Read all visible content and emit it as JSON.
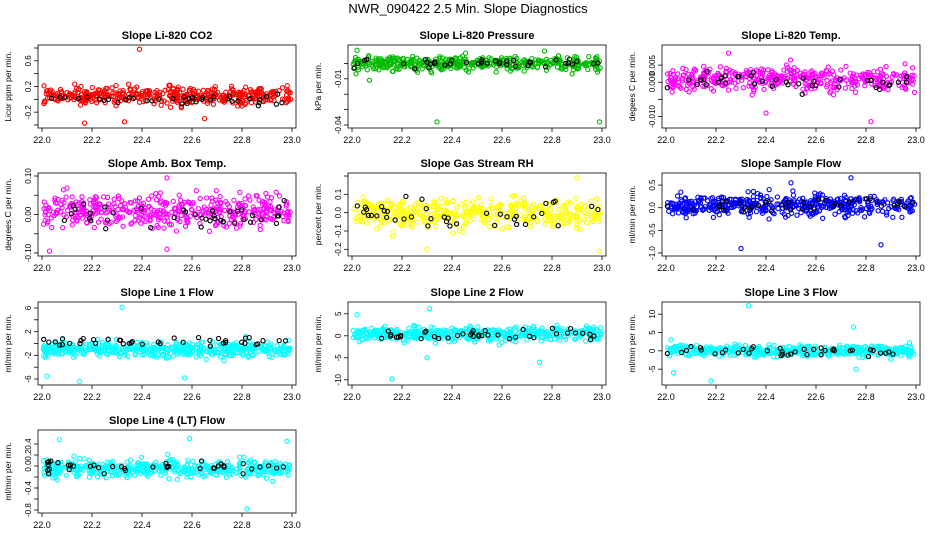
{
  "page": {
    "title": "NWR_090422  2.5 Min. Slope Diagnostics"
  },
  "chart_data": [
    {
      "type": "scatter",
      "title": "Slope Li-820 CO2",
      "xlabel": "",
      "ylabel": "Licor ppm per min.",
      "xlim": [
        22.0,
        23.0
      ],
      "ylim": [
        -0.4,
        0.8
      ],
      "xticks": [
        "22.0",
        "22.2",
        "22.4",
        "22.6",
        "22.8",
        "23.0"
      ],
      "yticks": [
        -0.4,
        -0.2,
        0.0,
        0.2,
        0.4,
        0.6,
        0.8
      ],
      "ytick_labels": [
        "",
        "-0.2",
        "",
        "0.2",
        "",
        "0.6",
        ""
      ],
      "series": [
        {
          "color": "#ff0000",
          "center": 0.06,
          "spread": 0.11,
          "n": 420
        },
        {
          "color": "#000000",
          "center": 0.0,
          "spread": 0.08,
          "n": 40
        }
      ],
      "outliers": [
        [
          22.39,
          0.78
        ],
        [
          22.17,
          -0.37
        ],
        [
          22.33,
          -0.35
        ],
        [
          22.65,
          -0.3
        ]
      ]
    },
    {
      "type": "scatter",
      "title": "Slope Li-820 Pressure",
      "xlabel": "",
      "ylabel": "kPa per min.",
      "xlim": [
        22.0,
        23.0
      ],
      "ylim": [
        -0.04,
        0.01
      ],
      "xticks": [
        "22.0",
        "22.2",
        "22.4",
        "22.6",
        "22.8",
        "23.0"
      ],
      "yticks": [
        -0.04,
        -0.03,
        -0.02,
        -0.01,
        0.0
      ],
      "ytick_labels": [
        "-0.04",
        "",
        "",
        "-0.01",
        ""
      ],
      "series": [
        {
          "color": "#00bb00",
          "center": 0.0,
          "spread": 0.004,
          "n": 420
        },
        {
          "color": "#000000",
          "center": 0.0,
          "spread": 0.0025,
          "n": 40
        }
      ],
      "outliers": [
        [
          22.34,
          -0.038
        ],
        [
          22.99,
          -0.038
        ],
        [
          22.02,
          0.0085
        ],
        [
          22.77,
          0.008
        ],
        [
          22.07,
          -0.011
        ]
      ]
    },
    {
      "type": "scatter",
      "title": "Slope Li-820 Temp.",
      "xlabel": "",
      "ylabel": "degees C per min.",
      "xlim": [
        22.0,
        23.0
      ],
      "ylim": [
        -0.0125,
        0.01
      ],
      "xticks": [
        "22.0",
        "22.2",
        "22.4",
        "22.6",
        "22.8",
        "23.0"
      ],
      "yticks": [
        -0.01,
        -0.005,
        0.0,
        0.005
      ],
      "ytick_labels": [
        "-0.010",
        "",
        "0.000",
        "0.005"
      ],
      "series": [
        {
          "color": "#ff00ff",
          "center": 0.001,
          "spread": 0.003,
          "n": 420
        },
        {
          "color": "#000000",
          "center": 0.0,
          "spread": 0.0025,
          "n": 40
        }
      ],
      "outliers": [
        [
          22.25,
          0.0085
        ],
        [
          22.82,
          -0.0115
        ],
        [
          22.4,
          -0.009
        ]
      ]
    },
    {
      "type": "scatter",
      "title": "Slope Amb. Box Temp.",
      "xlabel": "",
      "ylabel": "degrees C per min.",
      "xlim": [
        22.0,
        23.0
      ],
      "ylim": [
        -0.1,
        0.1
      ],
      "xticks": [
        "22.0",
        "22.2",
        "22.4",
        "22.6",
        "22.8",
        "23.0"
      ],
      "yticks": [
        -0.1,
        -0.05,
        0.0,
        0.05,
        0.1
      ],
      "ytick_labels": [
        "-0.10",
        "",
        "0.00",
        "",
        "0.10"
      ],
      "series": [
        {
          "color": "#ff00ff",
          "center": 0.01,
          "spread": 0.035,
          "n": 420
        },
        {
          "color": "#000000",
          "center": 0.0,
          "spread": 0.03,
          "n": 40
        }
      ],
      "outliers": [
        [
          22.5,
          0.095
        ],
        [
          22.03,
          -0.095
        ],
        [
          22.5,
          -0.09
        ]
      ]
    },
    {
      "type": "scatter",
      "title": "Slope Gas Stream RH",
      "xlabel": "",
      "ylabel": "percent per min.",
      "xlim": [
        22.0,
        23.0
      ],
      "ylim": [
        -0.22,
        0.2
      ],
      "xticks": [
        "22.0",
        "22.2",
        "22.4",
        "22.6",
        "22.8",
        "23.0"
      ],
      "yticks": [
        -0.2,
        -0.1,
        0.0,
        0.1,
        0.2
      ],
      "ytick_labels": [
        "-0.2",
        "-0.1",
        "0.0",
        "0.1",
        ""
      ],
      "series": [
        {
          "color": "#ffff00",
          "center": 0.0,
          "spread": 0.07,
          "n": 420
        },
        {
          "color": "#000000",
          "center": 0.0,
          "spread": 0.07,
          "n": 40
        }
      ],
      "outliers": [
        [
          22.3,
          -0.2
        ],
        [
          22.99,
          -0.21
        ],
        [
          22.9,
          0.19
        ]
      ]
    },
    {
      "type": "scatter",
      "title": "Slope Sample Flow",
      "xlabel": "",
      "ylabel": "ml/min per min.",
      "xlim": [
        22.0,
        23.0
      ],
      "ylim": [
        -1.0,
        0.7
      ],
      "xticks": [
        "22.0",
        "22.2",
        "22.4",
        "22.6",
        "22.8",
        "23.0"
      ],
      "yticks": [
        -1.0,
        -0.5,
        0.0,
        0.5
      ],
      "ytick_labels": [
        "-1.0",
        "-0.5",
        "0.0",
        "0.5"
      ],
      "series": [
        {
          "color": "#0000ff",
          "center": 0.05,
          "spread": 0.2,
          "n": 460
        },
        {
          "color": "#000000",
          "center": 0.05,
          "spread": 0.15,
          "n": 40
        }
      ],
      "outliers": [
        [
          22.74,
          0.66
        ],
        [
          22.3,
          -0.9
        ],
        [
          22.86,
          -0.82
        ],
        [
          22.5,
          0.55
        ]
      ]
    },
    {
      "type": "scatter",
      "title": "Slope Line 1 Flow",
      "xlabel": "",
      "ylabel": "ml/min per min.",
      "xlim": [
        22.0,
        23.0
      ],
      "ylim": [
        -6.5,
        6.5
      ],
      "xticks": [
        "22.0",
        "22.2",
        "22.4",
        "22.6",
        "22.8",
        "23.0"
      ],
      "yticks": [
        -6,
        -4,
        -2,
        0,
        2,
        4,
        6
      ],
      "ytick_labels": [
        "-6",
        "",
        "-2",
        "",
        "2",
        "",
        "6"
      ],
      "series": [
        {
          "color": "#00ffff",
          "center": -1.0,
          "spread": 1.1,
          "n": 460
        },
        {
          "color": "#000000",
          "center": 0.3,
          "spread": 0.5,
          "n": 40
        }
      ],
      "outliers": [
        [
          22.32,
          6.1
        ],
        [
          22.15,
          -6.4
        ],
        [
          22.02,
          -5.5
        ],
        [
          22.57,
          -5.8
        ]
      ]
    },
    {
      "type": "scatter",
      "title": "Slope Line 2 Flow",
      "xlabel": "",
      "ylabel": "ml/min per min.",
      "xlim": [
        22.0,
        23.0
      ],
      "ylim": [
        -10.5,
        7.0
      ],
      "xticks": [
        "22.0",
        "22.2",
        "22.4",
        "22.6",
        "22.8",
        "23.0"
      ],
      "yticks": [
        -10,
        -5,
        0,
        5
      ],
      "ytick_labels": [
        "-10",
        "-5",
        "0",
        "5"
      ],
      "series": [
        {
          "color": "#00ffff",
          "center": 0.5,
          "spread": 1.4,
          "n": 440
        },
        {
          "color": "#000000",
          "center": 0.5,
          "spread": 1.2,
          "n": 40
        }
      ],
      "outliers": [
        [
          22.16,
          -9.8
        ],
        [
          22.31,
          6.2
        ],
        [
          22.02,
          4.8
        ],
        [
          22.75,
          -6.0
        ],
        [
          22.3,
          -5.0
        ]
      ]
    },
    {
      "type": "scatter",
      "title": "Slope Line 3 Flow",
      "xlabel": "",
      "ylabel": "ml/min per min.",
      "xlim": [
        22.0,
        23.0
      ],
      "ylim": [
        -8.5,
        12.5
      ],
      "xticks": [
        "22.0",
        "22.2",
        "22.4",
        "22.6",
        "22.8",
        "23.0"
      ],
      "yticks": [
        -5,
        0,
        5,
        10
      ],
      "ytick_labels": [
        "-5",
        "0",
        "5",
        "10"
      ],
      "series": [
        {
          "color": "#00ffff",
          "center": 0.0,
          "spread": 1.3,
          "n": 440
        },
        {
          "color": "#000000",
          "center": 0.0,
          "spread": 1.0,
          "n": 40
        }
      ],
      "outliers": [
        [
          22.33,
          12.3
        ],
        [
          22.18,
          -8.2
        ],
        [
          22.75,
          6.5
        ],
        [
          22.76,
          -5.0
        ],
        [
          22.03,
          -6.0
        ],
        [
          22.02,
          3.0
        ]
      ]
    },
    {
      "type": "scatter",
      "title": "Slope Line 4 (LT) Flow",
      "xlabel": "",
      "ylabel": "ml/min per min.",
      "xlim": [
        22.0,
        23.0
      ],
      "ylim": [
        -0.8,
        0.6
      ],
      "xticks": [
        "22.0",
        "22.2",
        "22.4",
        "22.6",
        "22.8",
        "23.0"
      ],
      "yticks": [
        -0.8,
        -0.6,
        -0.4,
        -0.2,
        0.0,
        0.2,
        0.4
      ],
      "ytick_labels": [
        "-0.8",
        "",
        "-0.4",
        "",
        "0.0",
        "0.2",
        "0.4"
      ],
      "series": [
        {
          "color": "#00ffff",
          "center": -0.05,
          "spread": 0.14,
          "n": 440
        },
        {
          "color": "#000000",
          "center": -0.02,
          "spread": 0.1,
          "n": 40
        }
      ],
      "outliers": [
        [
          22.82,
          -0.78
        ],
        [
          22.59,
          0.5
        ],
        [
          22.98,
          0.45
        ],
        [
          22.07,
          0.48
        ]
      ]
    }
  ]
}
